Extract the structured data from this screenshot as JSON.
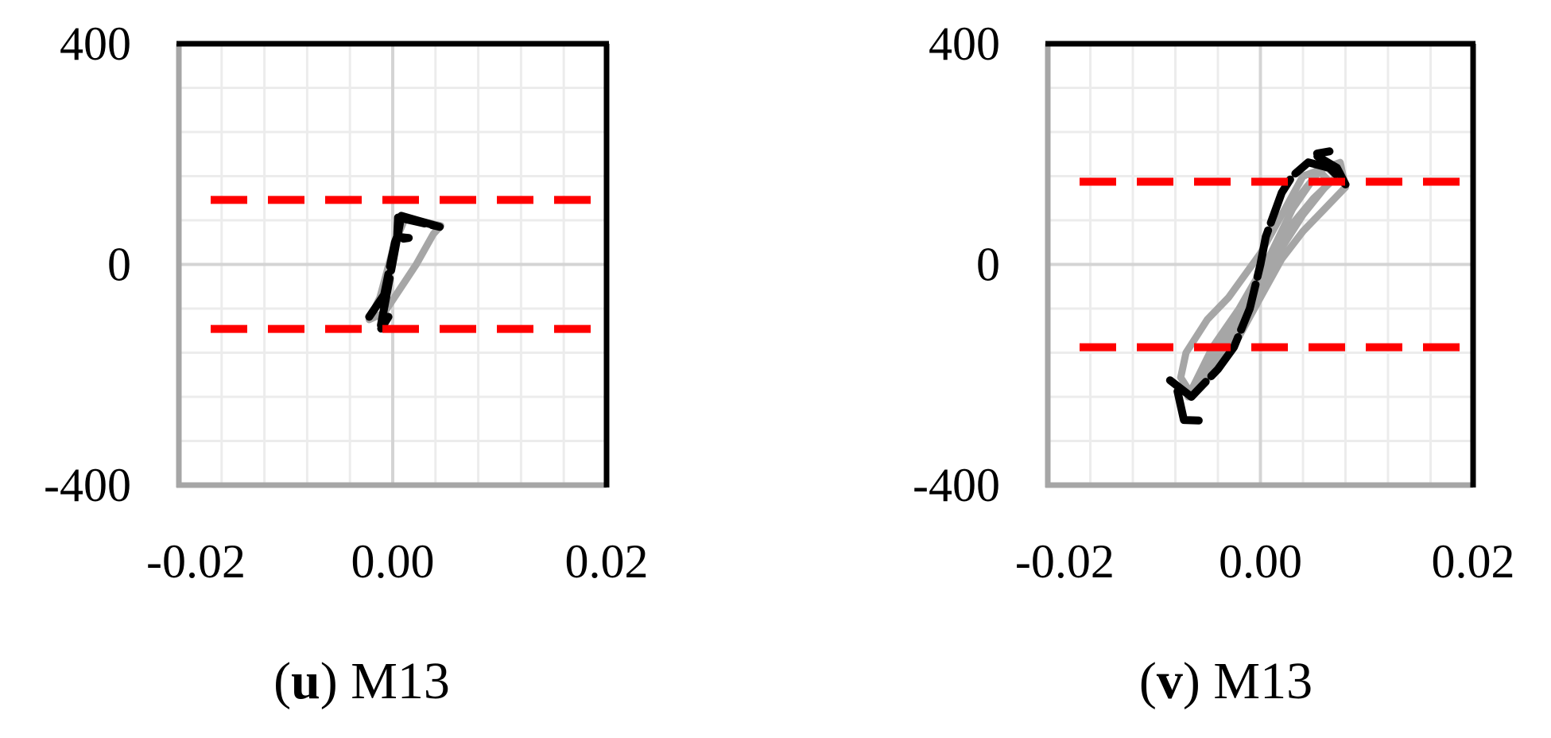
{
  "chart_data": [
    {
      "type": "line",
      "caption_letter": "u",
      "caption_label": "M13",
      "xlim": [
        -0.02,
        0.02
      ],
      "ylim": [
        -400,
        400
      ],
      "xticks": [
        "-0.02",
        "0.00",
        "0.02"
      ],
      "yticks": [
        "400",
        "0",
        "-400"
      ],
      "grid": true,
      "reference_lines": [
        {
          "y": 117,
          "color": "#ff0000",
          "style": "dashed"
        },
        {
          "y": -117,
          "color": "#ff0000",
          "style": "dashed"
        }
      ],
      "series": [
        {
          "color": "#a6a6a6",
          "points": [
            [
              -0.0022,
              -100
            ],
            [
              -0.0008,
              -88
            ],
            [
              0.0022,
              0
            ],
            [
              0.0038,
              55
            ],
            [
              0.0045,
              70
            ],
            [
              0.0012,
              85
            ],
            [
              0.0002,
              40
            ],
            [
              -0.0012,
              -60
            ],
            [
              -0.0022,
              -100
            ]
          ]
        },
        {
          "color": "#000000",
          "points": [
            [
              -0.0022,
              -95
            ],
            [
              -0.0008,
              -55
            ],
            [
              0.0002,
              40
            ],
            [
              0.0004,
              50
            ],
            [
              0.0015,
              48
            ],
            [
              0.0004,
              45
            ],
            [
              0.0005,
              85
            ],
            [
              0.0044,
              68
            ],
            [
              0.0008,
              88
            ],
            [
              -0.0012,
              -120
            ],
            [
              -0.0004,
              -95
            ]
          ]
        }
      ]
    },
    {
      "type": "line",
      "caption_letter": "v",
      "caption_label": "M13",
      "xlim": [
        -0.02,
        0.02
      ],
      "ylim": [
        -400,
        400
      ],
      "xticks": [
        "-0.02",
        "0.00",
        "0.02"
      ],
      "yticks": [
        "400",
        "0",
        "-400"
      ],
      "grid": true,
      "reference_lines": [
        {
          "y": 150,
          "color": "#ff0000",
          "style": "dashed"
        },
        {
          "y": -150,
          "color": "#ff0000",
          "style": "dashed"
        }
      ],
      "series": [
        {
          "color": "#a6a6a6",
          "points": [
            [
              -0.0075,
              -205
            ],
            [
              -0.007,
              -160
            ],
            [
              -0.005,
              -100
            ],
            [
              -0.003,
              -60
            ],
            [
              0.0,
              20
            ],
            [
              0.002,
              90
            ],
            [
              0.004,
              160
            ],
            [
              0.0075,
              185
            ],
            [
              0.008,
              140
            ],
            [
              0.006,
              100
            ],
            [
              0.004,
              60
            ],
            [
              0.002,
              10
            ],
            [
              0.0,
              -60
            ],
            [
              -0.002,
              -130
            ],
            [
              -0.004,
              -190
            ],
            [
              -0.0065,
              -235
            ],
            [
              -0.0075,
              -205
            ]
          ]
        },
        {
          "color": "#a6a6a6",
          "points": [
            [
              -0.0068,
              -240
            ],
            [
              -0.0045,
              -150
            ],
            [
              -0.002,
              -80
            ],
            [
              0.001,
              20
            ],
            [
              0.0035,
              120
            ],
            [
              0.006,
              180
            ],
            [
              0.0072,
              160
            ],
            [
              0.005,
              120
            ],
            [
              0.002,
              50
            ],
            [
              -0.001,
              -60
            ],
            [
              -0.004,
              -170
            ],
            [
              -0.0068,
              -240
            ]
          ]
        },
        {
          "color": "#a6a6a6",
          "points": [
            [
              -0.006,
              -215
            ],
            [
              -0.003,
              -120
            ],
            [
              0.0,
              -20
            ],
            [
              0.003,
              100
            ],
            [
              0.0055,
              170
            ],
            [
              0.0065,
              150
            ],
            [
              0.004,
              90
            ],
            [
              0.001,
              0
            ],
            [
              -0.002,
              -110
            ],
            [
              -0.005,
              -200
            ],
            [
              -0.006,
              -215
            ]
          ]
        },
        {
          "color": "#000000",
          "points": [
            [
              -0.0085,
              -210
            ],
            [
              -0.0065,
              -240
            ],
            [
              -0.0055,
              -220
            ],
            [
              -0.004,
              -190
            ],
            [
              -0.0025,
              -150
            ],
            [
              -0.001,
              -80
            ],
            [
              0.0,
              0
            ],
            [
              0.0005,
              50
            ],
            [
              0.002,
              130
            ],
            [
              0.003,
              160
            ],
            [
              0.0045,
              185
            ],
            [
              0.0065,
              175
            ],
            [
              0.008,
              145
            ],
            [
              0.0072,
              175
            ],
            [
              0.005,
              200
            ],
            [
              0.0065,
              205
            ]
          ]
        },
        {
          "color": "#000000",
          "points": [
            [
              -0.0078,
              -230
            ],
            [
              -0.0072,
              -282
            ],
            [
              -0.0058,
              -283
            ]
          ]
        }
      ]
    }
  ]
}
